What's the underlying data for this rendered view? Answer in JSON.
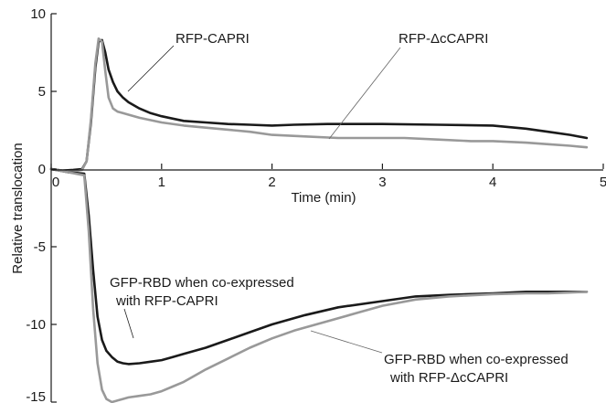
{
  "chart_data": {
    "type": "line",
    "title": "",
    "xlabel": "Time (min)",
    "ylabel": "Relative translocation",
    "xlim": [
      0,
      5
    ],
    "ylim": [
      -15,
      10
    ],
    "x_ticks": [
      0,
      1,
      2,
      3,
      4,
      5
    ],
    "x_tick_labels": [
      "0",
      "1",
      "2",
      "3",
      "4",
      "5"
    ],
    "y_ticks": [
      10,
      5,
      0,
      -5,
      -10,
      -15
    ],
    "y_tick_labels": [
      "10",
      "5",
      "0",
      "-5",
      "-10",
      "-15"
    ],
    "grid": false,
    "legend": "none",
    "series": [
      {
        "color": "#1a1a1a",
        "x": [
          0,
          0.1,
          0.2,
          0.28,
          0.32,
          0.36,
          0.4,
          0.43,
          0.46,
          0.49,
          0.52,
          0.56,
          0.6,
          0.65,
          0.7,
          0.8,
          0.9,
          1.0,
          1.2,
          1.4,
          1.6,
          1.8,
          2.0,
          2.2,
          2.5,
          3.0,
          3.5,
          4.0,
          4.3,
          4.5,
          4.7,
          4.85
        ],
        "y": [
          0,
          -0.1,
          -0.05,
          0,
          0.5,
          3.0,
          6.5,
          8.2,
          8.3,
          7.5,
          6.4,
          5.6,
          5.0,
          4.6,
          4.3,
          3.9,
          3.6,
          3.4,
          3.1,
          3.0,
          2.9,
          2.85,
          2.8,
          2.85,
          2.9,
          2.9,
          2.85,
          2.8,
          2.6,
          2.4,
          2.2,
          2.0
        ]
      },
      {
        "color": "#999999",
        "x": [
          0,
          0.1,
          0.2,
          0.28,
          0.32,
          0.36,
          0.4,
          0.43,
          0.46,
          0.49,
          0.52,
          0.56,
          0.6,
          0.65,
          0.7,
          0.8,
          1.0,
          1.2,
          1.5,
          1.8,
          2.0,
          2.3,
          2.6,
          2.9,
          3.2,
          3.5,
          3.8,
          4.0,
          4.3,
          4.5,
          4.7,
          4.85
        ],
        "y": [
          0,
          -0.1,
          -0.15,
          -0.05,
          0.5,
          3.2,
          6.8,
          8.4,
          8.2,
          6.3,
          4.6,
          3.9,
          3.7,
          3.6,
          3.5,
          3.3,
          3.0,
          2.8,
          2.6,
          2.4,
          2.2,
          2.1,
          2.0,
          2.0,
          2.0,
          1.9,
          1.8,
          1.8,
          1.7,
          1.6,
          1.5,
          1.4
        ]
      },
      {
        "color": "#1a1a1a",
        "x": [
          0,
          0.15,
          0.3,
          0.34,
          0.38,
          0.42,
          0.46,
          0.5,
          0.55,
          0.6,
          0.65,
          0.7,
          0.8,
          0.9,
          1.0,
          1.1,
          1.2,
          1.4,
          1.6,
          1.8,
          2.0,
          2.3,
          2.6,
          3.0,
          3.3,
          3.6,
          4.0,
          4.3,
          4.5,
          4.7,
          4.85
        ],
        "y": [
          0,
          -0.2,
          -0.3,
          -3.0,
          -6.5,
          -9.5,
          -11.0,
          -11.7,
          -12.1,
          -12.4,
          -12.5,
          -12.55,
          -12.5,
          -12.4,
          -12.3,
          -12.1,
          -11.9,
          -11.5,
          -11.0,
          -10.5,
          -10.0,
          -9.4,
          -8.9,
          -8.5,
          -8.2,
          -8.1,
          -8.0,
          -7.9,
          -7.9,
          -7.9,
          -7.9
        ]
      },
      {
        "color": "#999999",
        "x": [
          0,
          0.15,
          0.3,
          0.34,
          0.38,
          0.42,
          0.46,
          0.5,
          0.55,
          0.6,
          0.65,
          0.7,
          0.8,
          0.9,
          1.0,
          1.1,
          1.2,
          1.3,
          1.4,
          1.6,
          1.8,
          2.0,
          2.2,
          2.5,
          2.8,
          3.0,
          3.3,
          3.6,
          4.0,
          4.3,
          4.5,
          4.7,
          4.85
        ],
        "y": [
          0,
          -0.2,
          -0.4,
          -4.0,
          -9.0,
          -12.5,
          -14.2,
          -14.8,
          -15.0,
          -14.9,
          -14.8,
          -14.7,
          -14.6,
          -14.5,
          -14.3,
          -14.0,
          -13.7,
          -13.3,
          -12.9,
          -12.2,
          -11.5,
          -10.9,
          -10.4,
          -9.8,
          -9.2,
          -8.8,
          -8.4,
          -8.2,
          -8.05,
          -8.0,
          -8.0,
          -7.95,
          -7.9
        ]
      }
    ],
    "annotations": [
      {
        "text": "RFP-CAPRI"
      },
      {
        "text": "RFP-ΔcCAPRI"
      },
      {
        "text": "GFP-RBD when co-expressed"
      },
      {
        "text": "with RFP-CAPRI"
      },
      {
        "text": "GFP-RBD when co-expressed"
      },
      {
        "text": "with RFP-ΔcCAPRI"
      }
    ]
  }
}
